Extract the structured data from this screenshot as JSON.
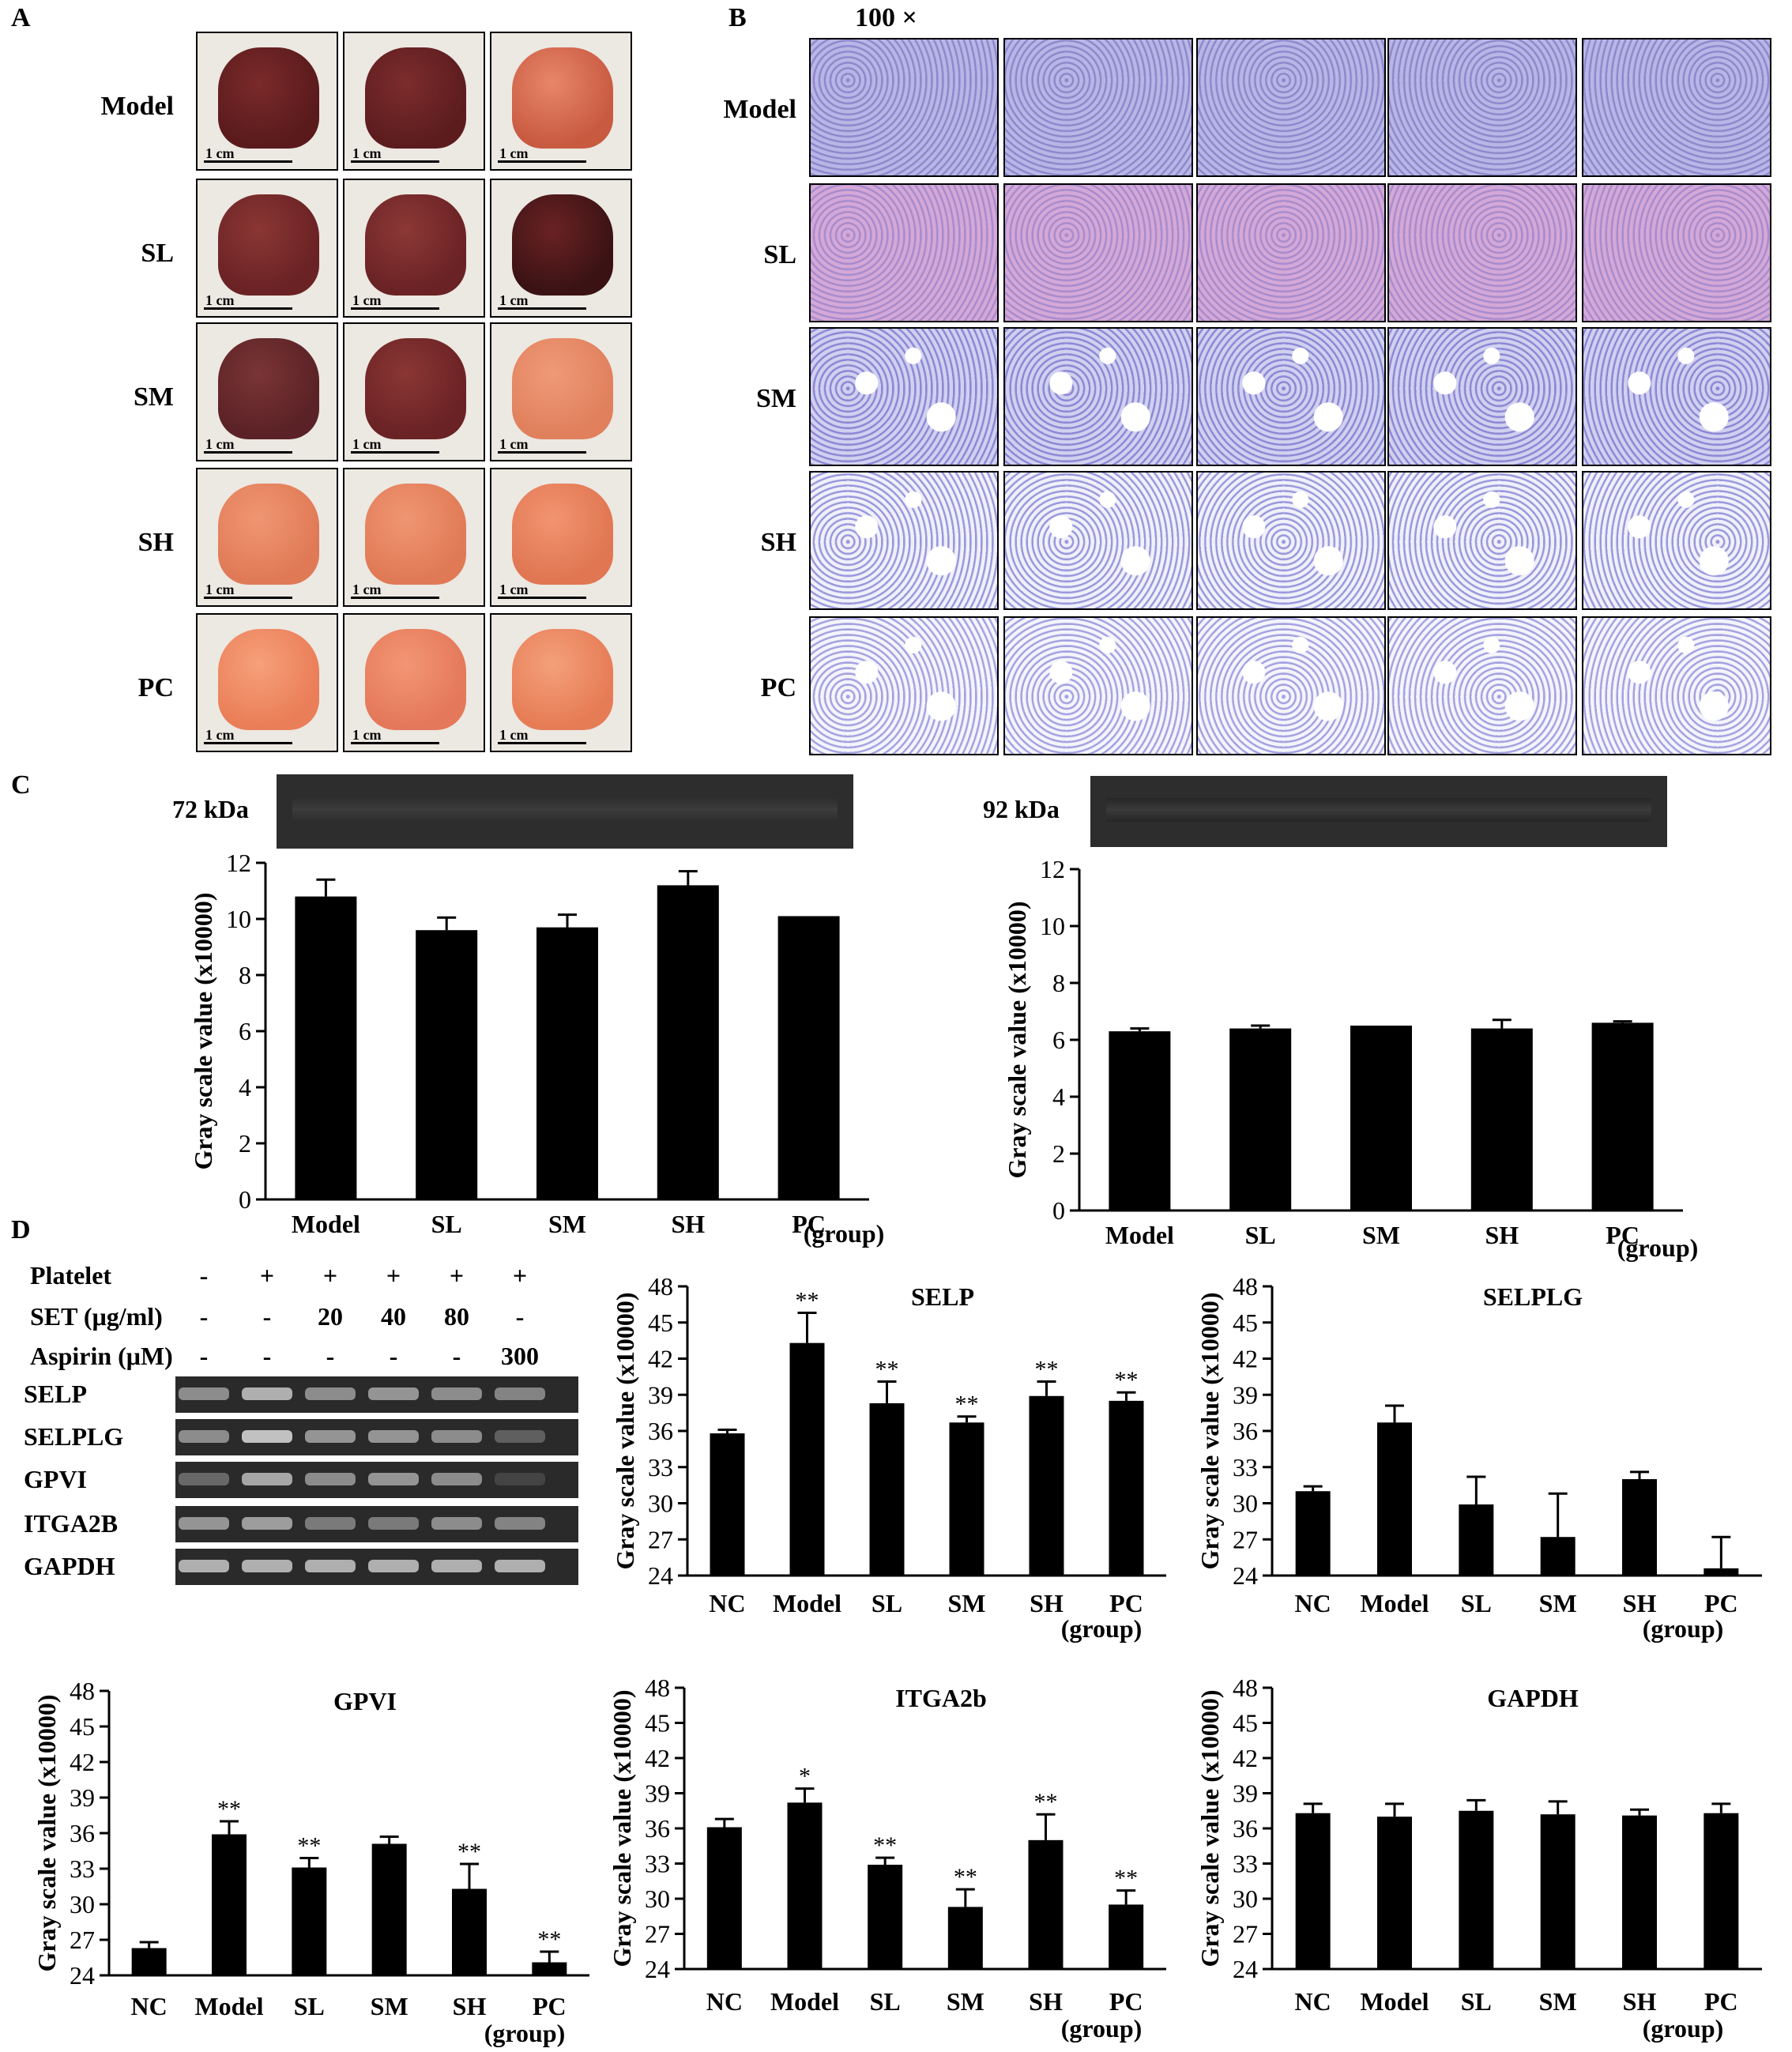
{
  "panel_A": {
    "letter": "A",
    "rows": [
      "Model",
      "SL",
      "SM",
      "SH",
      "PC"
    ],
    "scale_label": "1 cm"
  },
  "panel_B": {
    "letter": "B",
    "magnification": "100 ×",
    "rows": [
      "Model",
      "SL",
      "SM",
      "SH",
      "PC"
    ]
  },
  "panel_C": {
    "letter": "C",
    "left_band_label": "72 kDa",
    "right_band_label": "92 kDa"
  },
  "panel_D": {
    "letter": "D",
    "gel_rows": [
      {
        "label": "Platelet",
        "values": [
          "-",
          "+",
          "+",
          "+",
          "+",
          "+"
        ]
      },
      {
        "label": "SET (μg/ml)",
        "values": [
          "-",
          "-",
          "20",
          "40",
          "80",
          "-"
        ]
      },
      {
        "label": "Aspirin (μM)",
        "values": [
          "-",
          "-",
          "-",
          "-",
          "-",
          "300"
        ]
      }
    ],
    "gel_bands": [
      "SELP",
      "SELPLG",
      "GPVI",
      "ITGA2B",
      "GAPDH"
    ]
  },
  "chart_data": [
    {
      "id": "c-72kda",
      "type": "bar",
      "title": "",
      "categories": [
        "Model",
        "SL",
        "SM",
        "SH",
        "PC"
      ],
      "values": [
        10.8,
        9.6,
        9.7,
        11.2,
        10.1
      ],
      "errors": [
        0.6,
        0.45,
        0.45,
        0.5,
        0.0
      ],
      "stars": [
        "",
        "",
        "",
        "",
        ""
      ],
      "ylabel": "Gray scale value  (x10000)",
      "xunit": "(group)",
      "ylim": [
        0,
        12
      ],
      "yticks": [
        0,
        2,
        4,
        6,
        8,
        10,
        12
      ]
    },
    {
      "id": "c-92kda",
      "type": "bar",
      "title": "",
      "categories": [
        "Model",
        "SL",
        "SM",
        "SH",
        "PC"
      ],
      "values": [
        6.3,
        6.4,
        6.5,
        6.4,
        6.6
      ],
      "errors": [
        0.1,
        0.1,
        0.0,
        0.3,
        0.05
      ],
      "stars": [
        "",
        "",
        "",
        "",
        ""
      ],
      "ylabel": "Gray scale value  (x10000)",
      "xunit": "(group)",
      "ylim": [
        0,
        12
      ],
      "yticks": [
        0,
        2,
        4,
        6,
        8,
        10,
        12
      ]
    },
    {
      "id": "d-selp",
      "type": "bar",
      "title": "SELP",
      "categories": [
        "NC",
        "Model",
        "SL",
        "SM",
        "SH",
        "PC"
      ],
      "values": [
        35.8,
        43.3,
        38.3,
        36.7,
        38.9,
        38.5
      ],
      "errors": [
        0.3,
        2.5,
        1.8,
        0.5,
        1.2,
        0.7
      ],
      "stars": [
        "",
        "**",
        "**",
        "**",
        "**",
        "**"
      ],
      "ylabel": "Gray scale value  (x10000)",
      "xunit": "(group)",
      "ylim": [
        24,
        48
      ],
      "yticks": [
        24,
        27,
        30,
        33,
        36,
        39,
        42,
        45,
        48
      ]
    },
    {
      "id": "d-selplg",
      "type": "bar",
      "title": "SELPLG",
      "categories": [
        "NC",
        "Model",
        "SL",
        "SM",
        "SH",
        "PC"
      ],
      "values": [
        31.0,
        36.7,
        29.9,
        27.2,
        32.0,
        24.6
      ],
      "errors": [
        0.4,
        1.4,
        2.3,
        3.6,
        0.6,
        2.6
      ],
      "stars": [
        "",
        "",
        "",
        "",
        "",
        ""
      ],
      "ylabel": "Gray scale value  (x10000)",
      "xunit": "(group)",
      "ylim": [
        24,
        48
      ],
      "yticks": [
        24,
        27,
        30,
        33,
        36,
        39,
        42,
        45,
        48
      ]
    },
    {
      "id": "d-gpvi",
      "type": "bar",
      "title": "GPVI",
      "categories": [
        "NC",
        "Model",
        "SL",
        "SM",
        "SH",
        "PC"
      ],
      "values": [
        26.3,
        35.9,
        33.1,
        35.1,
        31.3,
        25.1
      ],
      "errors": [
        0.5,
        1.1,
        0.8,
        0.6,
        2.1,
        0.9
      ],
      "stars": [
        "",
        "**",
        "**",
        "",
        "**",
        "**"
      ],
      "ylabel": "Gray scale value  (x10000)",
      "xunit": "(group)",
      "ylim": [
        24,
        48
      ],
      "yticks": [
        24,
        27,
        30,
        33,
        36,
        39,
        42,
        45,
        48
      ]
    },
    {
      "id": "d-itga2b",
      "type": "bar",
      "title": "ITGA2b",
      "categories": [
        "NC",
        "Model",
        "SL",
        "SM",
        "SH",
        "PC"
      ],
      "values": [
        36.1,
        38.2,
        32.9,
        29.3,
        35.0,
        29.5
      ],
      "errors": [
        0.7,
        1.2,
        0.6,
        1.5,
        2.2,
        1.2
      ],
      "stars": [
        "",
        "*",
        "**",
        "**",
        "**",
        "**"
      ],
      "ylabel": "Gray scale value  (x10000)",
      "xunit": "(group)",
      "ylim": [
        24,
        48
      ],
      "yticks": [
        24,
        27,
        30,
        33,
        36,
        39,
        42,
        45,
        48
      ]
    },
    {
      "id": "d-gapdh",
      "type": "bar",
      "title": "GAPDH",
      "categories": [
        "NC",
        "Model",
        "SL",
        "SM",
        "SH",
        "PC"
      ],
      "values": [
        37.3,
        37.0,
        37.5,
        37.2,
        37.1,
        37.3
      ],
      "errors": [
        0.8,
        1.1,
        0.9,
        1.1,
        0.5,
        0.8
      ],
      "stars": [
        "",
        "",
        "",
        "",
        "",
        ""
      ],
      "ylabel": "Gray scale value  (x10000)",
      "xunit": "(group)",
      "ylim": [
        24,
        48
      ],
      "yticks": [
        24,
        27,
        30,
        33,
        36,
        39,
        42,
        45,
        48
      ]
    }
  ]
}
